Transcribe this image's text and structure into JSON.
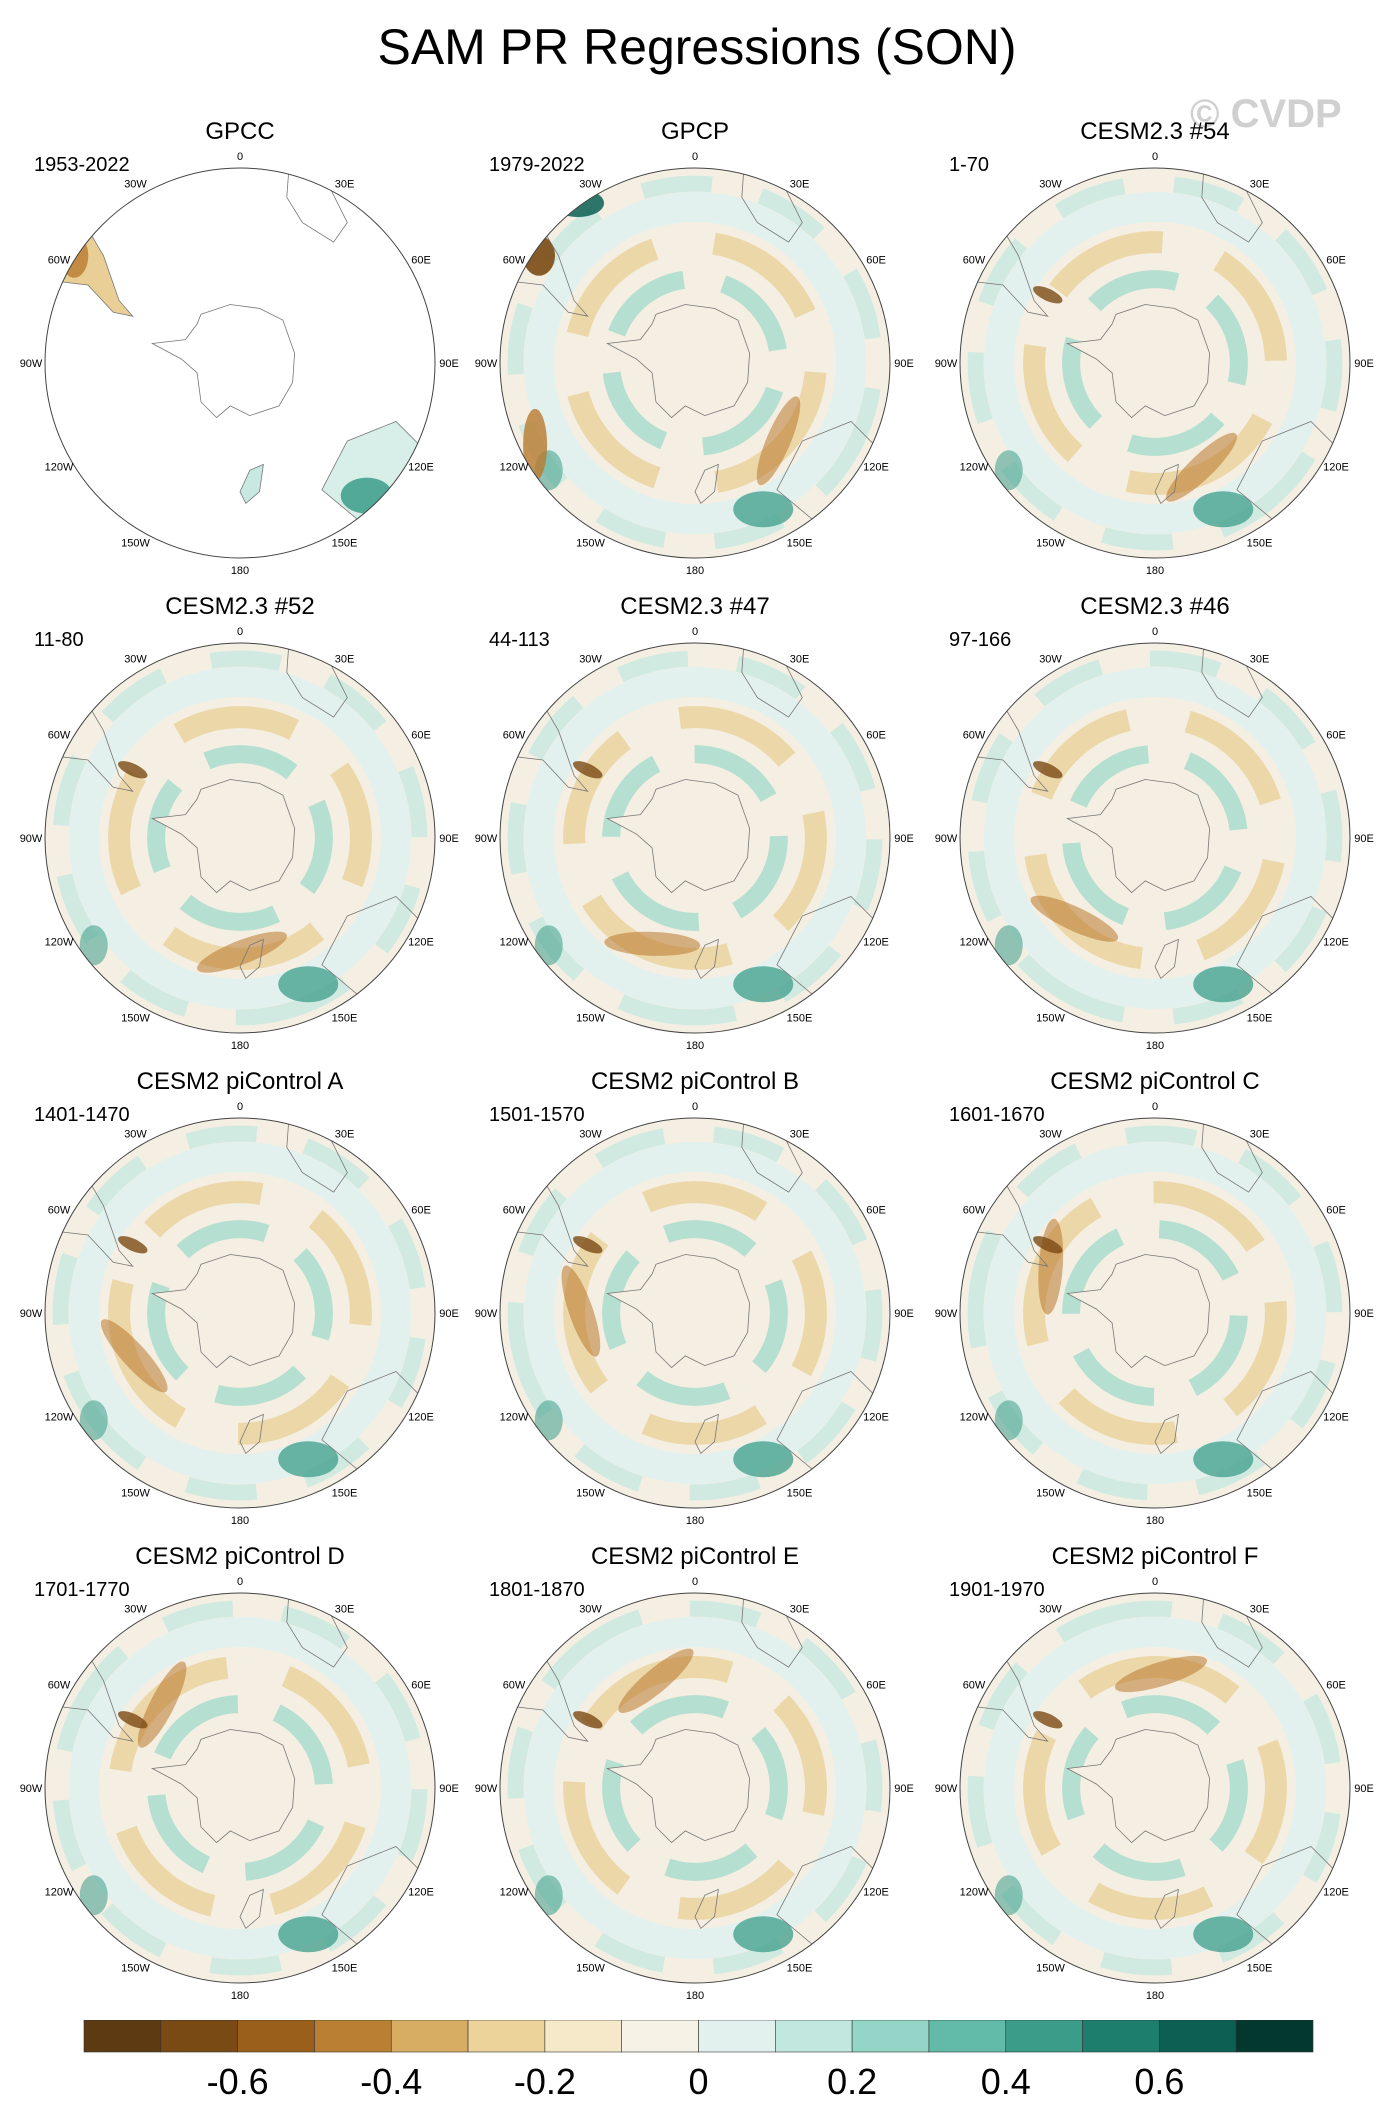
{
  "title": "SAM PR Regressions (SON)",
  "watermark": "© CVDP",
  "longitude_labels": [
    "0",
    "30E",
    "60E",
    "90E",
    "120E",
    "150E",
    "180",
    "150W",
    "120W",
    "90W",
    "60W",
    "30W"
  ],
  "panels": [
    {
      "title": "GPCC",
      "years": "1953-2022",
      "style": "obs-land"
    },
    {
      "title": "GPCP",
      "years": "1979-2022",
      "style": "obs"
    },
    {
      "title": "CESM2.3 #54",
      "years": "1-70",
      "style": "model"
    },
    {
      "title": "CESM2.3 #52",
      "years": "11-80",
      "style": "model"
    },
    {
      "title": "CESM2.3 #47",
      "years": "44-113",
      "style": "model"
    },
    {
      "title": "CESM2.3 #46",
      "years": "97-166",
      "style": "model"
    },
    {
      "title": "CESM2 piControl A",
      "years": "1401-1470",
      "style": "model"
    },
    {
      "title": "CESM2 piControl B",
      "years": "1501-1570",
      "style": "model"
    },
    {
      "title": "CESM2 piControl C",
      "years": "1601-1670",
      "style": "model"
    },
    {
      "title": "CESM2 piControl D",
      "years": "1701-1770",
      "style": "model"
    },
    {
      "title": "CESM2 piControl E",
      "years": "1801-1870",
      "style": "model"
    },
    {
      "title": "CESM2 piControl F",
      "years": "1901-1970",
      "style": "model"
    }
  ],
  "colorbar": {
    "colors": [
      "#5e3a12",
      "#7a4a14",
      "#9b5f1c",
      "#bb7f34",
      "#d6ad63",
      "#ebd39a",
      "#f6e9c9",
      "#f6f2e6",
      "#e3f1ee",
      "#c2e7df",
      "#93d6c7",
      "#62bba8",
      "#3c9c8a",
      "#1e7e6e",
      "#0b5f53",
      "#03382f"
    ],
    "tick_labels": [
      "-0.6",
      "-0.4",
      "-0.2",
      "0",
      "0.2",
      "0.4",
      "0.6"
    ],
    "tick_values": [
      -0.6,
      -0.4,
      -0.2,
      0,
      0.2,
      0.4,
      0.6
    ],
    "range": [
      -0.8,
      0.8
    ]
  }
}
